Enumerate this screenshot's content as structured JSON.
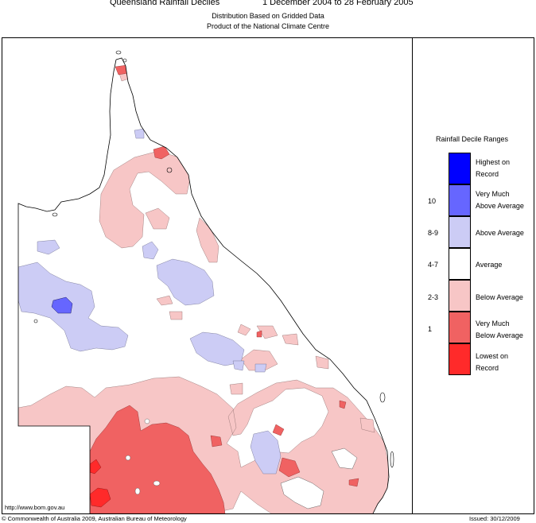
{
  "header": {
    "title": "Queensland Rainfall Deciles",
    "dates": "1 December 2004 to 28 February 2005",
    "subtitle1": "Distribution Based on Gridded Data",
    "subtitle2": "Product of the National Climate Centre"
  },
  "legend": {
    "title": "Rainfall Decile Ranges",
    "items": [
      {
        "range": "",
        "line1": "Highest on",
        "line2": "Record",
        "color": "#0000ff"
      },
      {
        "range": "10",
        "line1": "Very Much",
        "line2": "Above Average",
        "color": "#6666ff"
      },
      {
        "range": "8-9",
        "line1": "Above Average",
        "line2": "",
        "color": "#ccccf5"
      },
      {
        "range": "4-7",
        "line1": "Average",
        "line2": "",
        "color": "#ffffff"
      },
      {
        "range": "2-3",
        "line1": "Below Average",
        "line2": "",
        "color": "#f7c6c6"
      },
      {
        "range": "1",
        "line1": "Very Much",
        "line2": "Below Average",
        "color": "#f06262"
      },
      {
        "range": "",
        "line1": "Lowest on",
        "line2": "Record",
        "color": "#ff2a2a"
      }
    ]
  },
  "footer": {
    "url": "http://www.bom.gov.au",
    "copyright": "© Commonwealth of Australia 2009, Australian Bureau of Meteorology",
    "issued": "Issued: 30/12/2009"
  }
}
